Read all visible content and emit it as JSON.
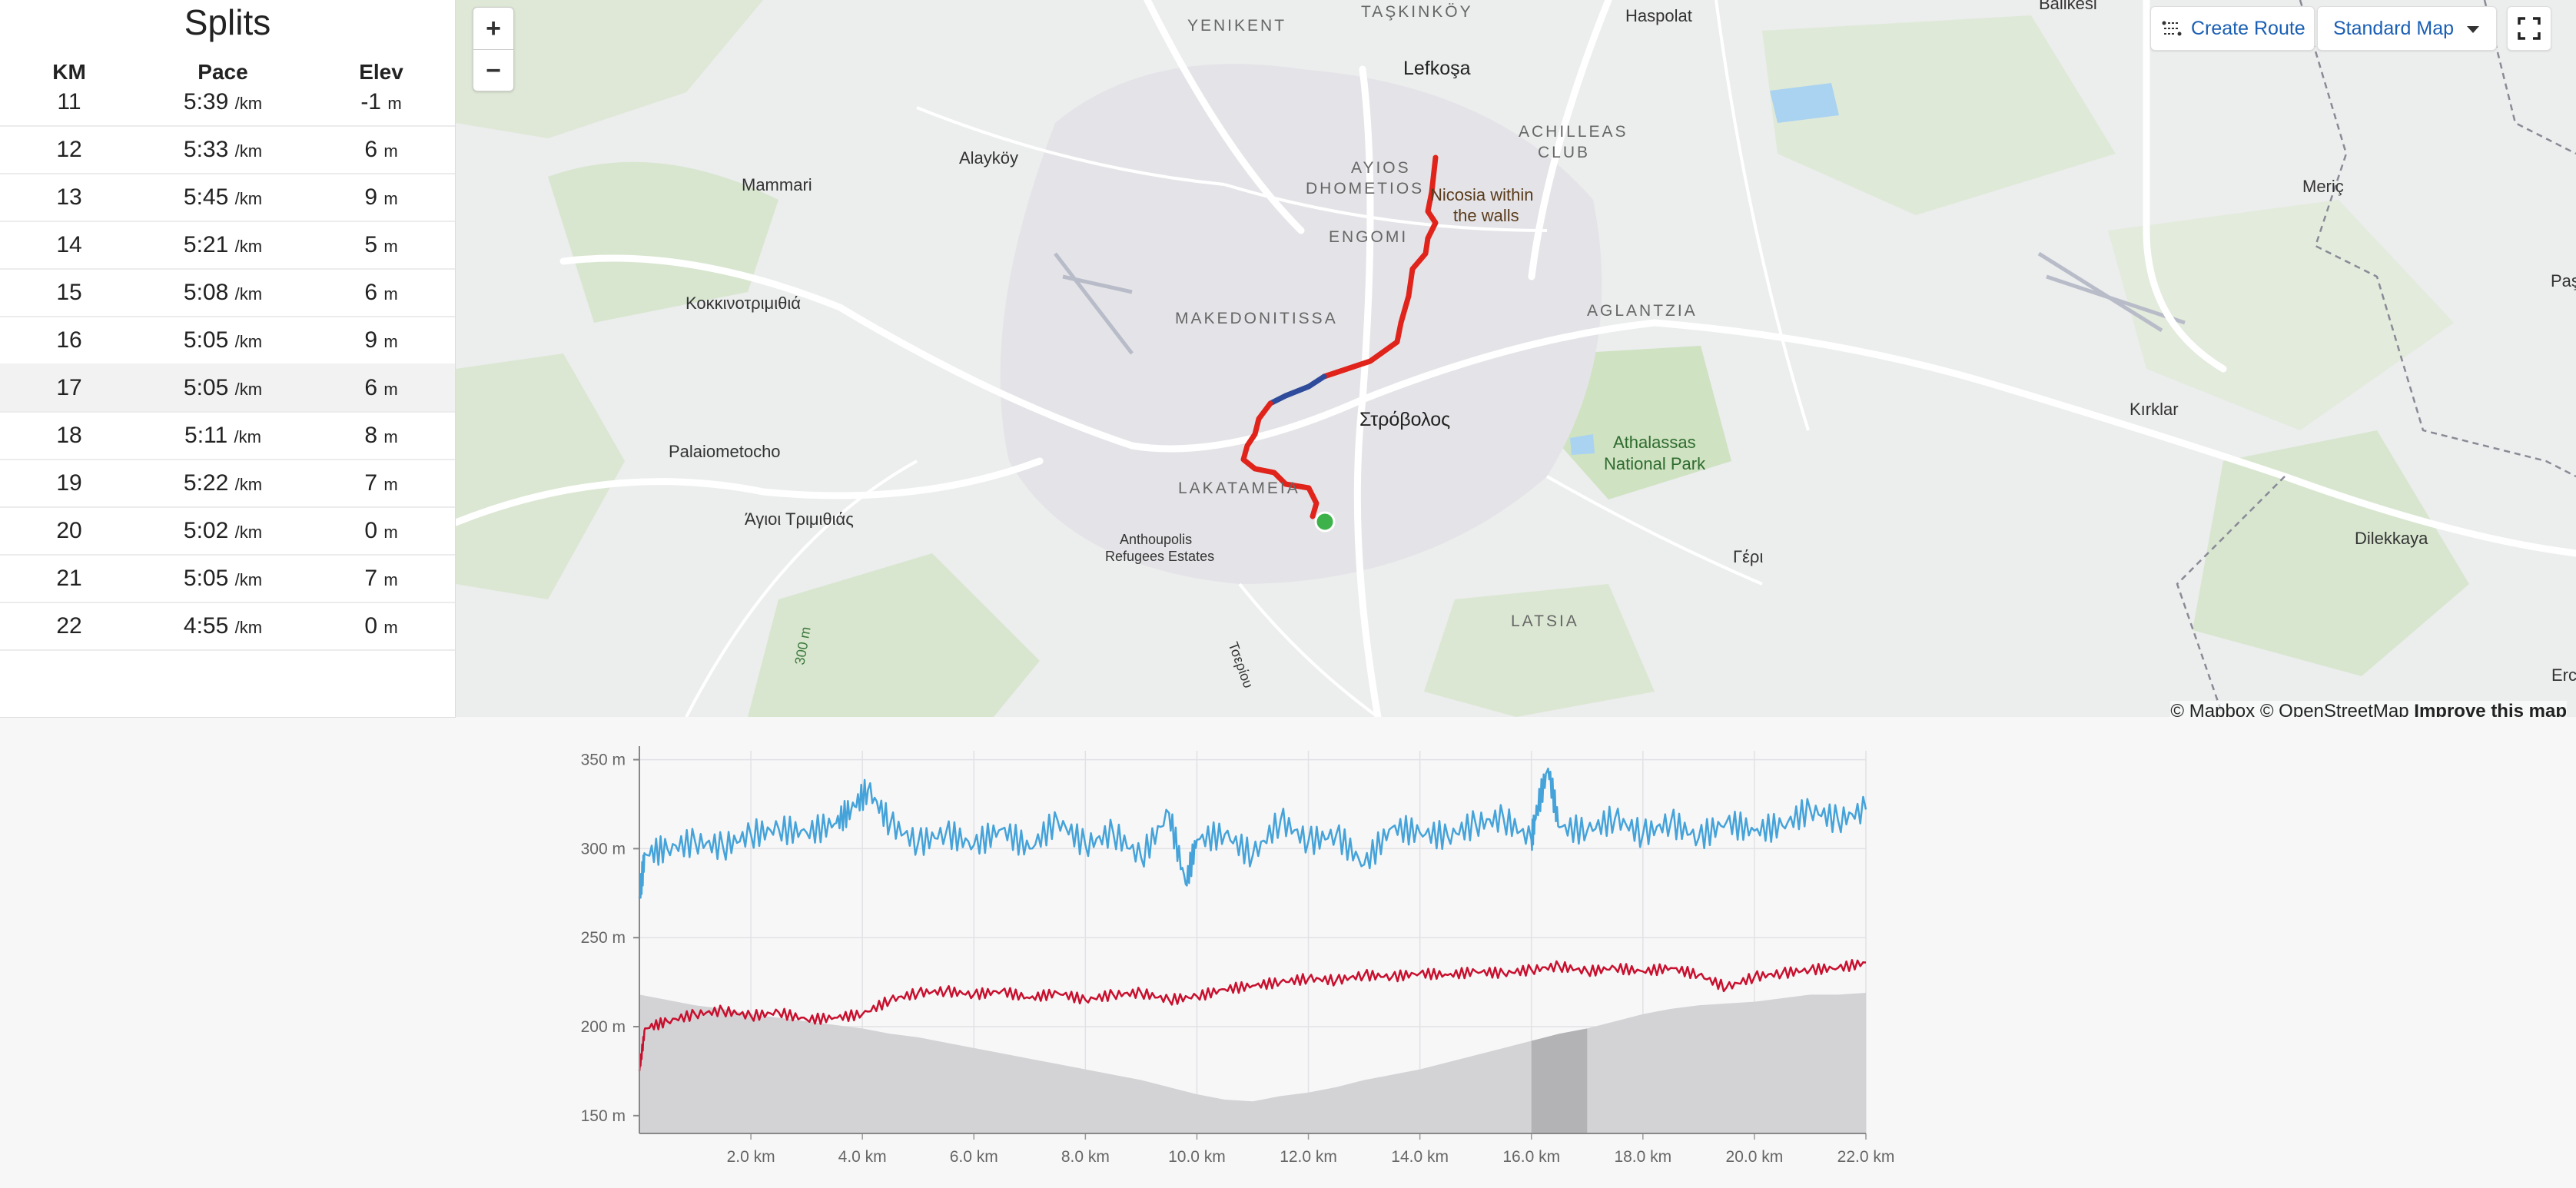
{
  "splits": {
    "title": "Splits",
    "headers": {
      "km": "KM",
      "pace": "Pace",
      "elev": "Elev"
    },
    "pace_unit": "/km",
    "elev_unit": "m",
    "rows": [
      {
        "km": "11",
        "pace": "5:39",
        "elev": "-1"
      },
      {
        "km": "12",
        "pace": "5:33",
        "elev": "6"
      },
      {
        "km": "13",
        "pace": "5:45",
        "elev": "9"
      },
      {
        "km": "14",
        "pace": "5:21",
        "elev": "5"
      },
      {
        "km": "15",
        "pace": "5:08",
        "elev": "6"
      },
      {
        "km": "16",
        "pace": "5:05",
        "elev": "9"
      },
      {
        "km": "17",
        "pace": "5:05",
        "elev": "6"
      },
      {
        "km": "18",
        "pace": "5:11",
        "elev": "8"
      },
      {
        "km": "19",
        "pace": "5:22",
        "elev": "7"
      },
      {
        "km": "20",
        "pace": "5:02",
        "elev": "0"
      },
      {
        "km": "21",
        "pace": "5:05",
        "elev": "7"
      },
      {
        "km": "22",
        "pace": "4:55",
        "elev": "0"
      }
    ],
    "highlighted_km": "17"
  },
  "map": {
    "zoom_in": "+",
    "zoom_out": "−",
    "create_route": "Create Route",
    "map_style": "Standard Map",
    "attribution": {
      "mapbox": "© Mapbox",
      "osm": "© OpenStreetMap",
      "improve": "Improve this map"
    },
    "labels": {
      "yenikent": "YENIKENT",
      "taskinkoy": "TAŞKINKÖY",
      "haspolat": "Haspolat",
      "balikesir": "Balikesi",
      "lefkosa": "Lefkoşa",
      "achilleas1": "ACHILLEAS",
      "achilleas2": "CLUB",
      "alaykoy": "Alayköy",
      "mammari": "Mammari",
      "ayios1": "AYIOS",
      "ayios2": "DHOMETIOS",
      "nicosia1": "Nicosia within",
      "nicosia2": "the walls",
      "meric": "Meriç",
      "engomi": "ENGOMI",
      "kokkino": "Κοκκινοτριμιθιά",
      "makedonitissa": "MAKEDONITISSA",
      "aglantzia": "AGLANTZIA",
      "pas": "Paş",
      "kirklar": "Kırklar",
      "strovolos": "Στρόβολος",
      "athalassas1": "Athalassas",
      "athalassas2": "National Park",
      "palaiometocho": "Palaiometocho",
      "lakatamia": "LAKATAMEIA",
      "agioi": "Άγιοι Τριμιθιάς",
      "anthoupolis1": "Anthoupolis",
      "anthoupolis2": "Refugees Estates",
      "dilekkaya": "Dilekkaya",
      "geri": "Γέρι",
      "latsia": "LATSIA",
      "alt300": "300 m",
      "tseriou": "Τσερίου",
      "erc": "Erc"
    }
  },
  "chart_data": {
    "type": "line",
    "x_unit": "km",
    "xlim": [
      0,
      22
    ],
    "ylim": [
      140,
      355
    ],
    "xticks": [
      "2.0 km",
      "4.0 km",
      "6.0 km",
      "8.0 km",
      "10.0 km",
      "12.0 km",
      "14.0 km",
      "16.0 km",
      "18.0 km",
      "20.0 km",
      "22.0 km"
    ],
    "yticks": [
      "350 m",
      "300 m",
      "250 m",
      "200 m",
      "150 m"
    ],
    "grid": true,
    "highlight_range_km": [
      16,
      17
    ],
    "colors": {
      "blue": "#45a3d9",
      "red": "#c8102e",
      "elevation_fill": "#d3d3d6",
      "highlight_fill": "#b3b3b5"
    },
    "series": [
      {
        "role": "blue line",
        "x": [
          0,
          0.1,
          0.5,
          1,
          1.5,
          2,
          2.5,
          3,
          3.5,
          3.8,
          4.1,
          4.5,
          5,
          5.5,
          6,
          6.5,
          7,
          7.5,
          8,
          8.5,
          9,
          9.5,
          9.8,
          10,
          10.5,
          11,
          11.5,
          12,
          12.5,
          13,
          13.5,
          14,
          14.5,
          15,
          15.5,
          16,
          16.1,
          16.3,
          16.5,
          17,
          17.5,
          18,
          18.5,
          19,
          19.5,
          20,
          20.5,
          21,
          21.5,
          22
        ],
        "y": [
          272,
          297,
          300,
          304,
          301,
          308,
          311,
          309,
          314,
          322,
          333,
          314,
          303,
          309,
          302,
          311,
          300,
          316,
          302,
          309,
          295,
          320,
          280,
          305,
          308,
          296,
          316,
          304,
          308,
          291,
          312,
          309,
          307,
          314,
          317,
          305,
          322,
          345,
          312,
          310,
          317,
          308,
          315,
          306,
          315,
          310,
          313,
          322,
          316,
          322
        ]
      },
      {
        "role": "red line",
        "x": [
          0,
          0.1,
          0.5,
          1,
          1.5,
          2,
          2.5,
          3,
          3.5,
          4,
          4.5,
          5,
          5.5,
          6,
          6.5,
          7,
          7.5,
          8,
          8.5,
          9,
          9.5,
          10,
          10.5,
          11,
          11.5,
          12,
          12.5,
          13,
          13.5,
          14,
          14.5,
          15,
          15.5,
          16,
          16.5,
          17,
          17.5,
          18,
          18.5,
          19,
          19.5,
          20,
          20.5,
          21,
          21.5,
          22
        ],
        "y": [
          175,
          199,
          203,
          207,
          209,
          206,
          208,
          204,
          205,
          207,
          215,
          219,
          220,
          218,
          220,
          216,
          219,
          215,
          218,
          219,
          215,
          217,
          221,
          223,
          225,
          227,
          226,
          229,
          228,
          230,
          229,
          231,
          230,
          232,
          234,
          231,
          233,
          231,
          233,
          229,
          222,
          228,
          230,
          232,
          233,
          236
        ]
      },
      {
        "role": "elevation area",
        "x": [
          0,
          0.5,
          1,
          1.5,
          2,
          2.5,
          3,
          3.5,
          4,
          4.5,
          5,
          5.5,
          6,
          6.5,
          7,
          7.5,
          8,
          8.5,
          9,
          9.5,
          10,
          10.5,
          11,
          11.5,
          12,
          12.5,
          13,
          13.5,
          14,
          14.5,
          15,
          15.5,
          16,
          16.5,
          17,
          17.5,
          18,
          18.5,
          19,
          19.5,
          20,
          20.5,
          21,
          21.5,
          22
        ],
        "y": [
          218,
          215,
          212,
          210,
          207,
          205,
          203,
          201,
          199,
          196,
          194,
          191,
          188,
          185,
          182,
          179,
          176,
          173,
          170,
          166,
          162,
          159,
          158,
          161,
          163,
          166,
          170,
          173,
          176,
          180,
          184,
          188,
          192,
          196,
          199,
          203,
          207,
          210,
          212,
          213,
          214,
          216,
          218,
          218,
          219
        ]
      }
    ]
  }
}
